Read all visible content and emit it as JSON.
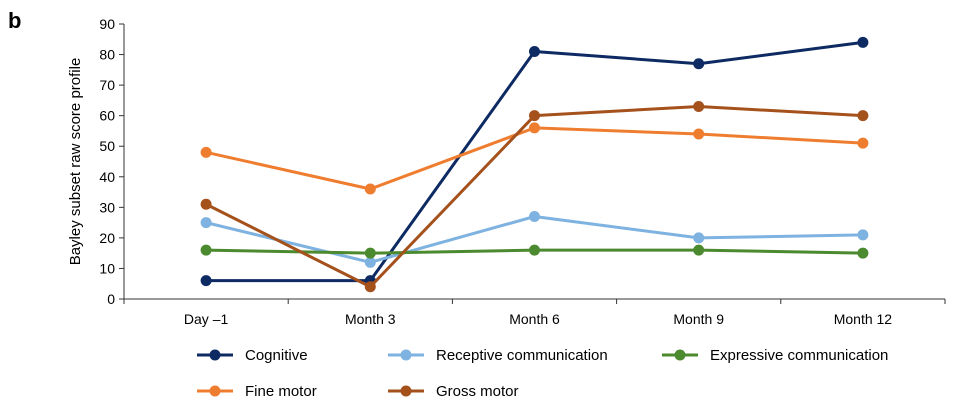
{
  "panel_label": "b",
  "chart_data": {
    "type": "line",
    "title": "",
    "xlabel": "",
    "ylabel": "Bayley subset raw score profile",
    "ylim": [
      0,
      90
    ],
    "yticks": [
      0,
      10,
      20,
      30,
      40,
      50,
      60,
      70,
      80,
      90
    ],
    "categories": [
      "Day –1",
      "Month 3",
      "Month 6",
      "Month 9",
      "Month 12"
    ],
    "grid": false,
    "legend_position": "bottom",
    "series": [
      {
        "name": "Cognitive",
        "color": "#0d2a63",
        "values": [
          6,
          6,
          81,
          77,
          84
        ]
      },
      {
        "name": "Receptive communication",
        "color": "#7eb2e0",
        "values": [
          25,
          12,
          27,
          20,
          21
        ]
      },
      {
        "name": "Expressive communication",
        "color": "#4c8a30",
        "values": [
          16,
          15,
          16,
          16,
          15
        ]
      },
      {
        "name": "Fine motor",
        "color": "#ef7d30",
        "values": [
          48,
          36,
          56,
          54,
          51
        ]
      },
      {
        "name": "Gross motor",
        "color": "#a4511c",
        "values": [
          31,
          4,
          60,
          63,
          60
        ]
      }
    ]
  }
}
